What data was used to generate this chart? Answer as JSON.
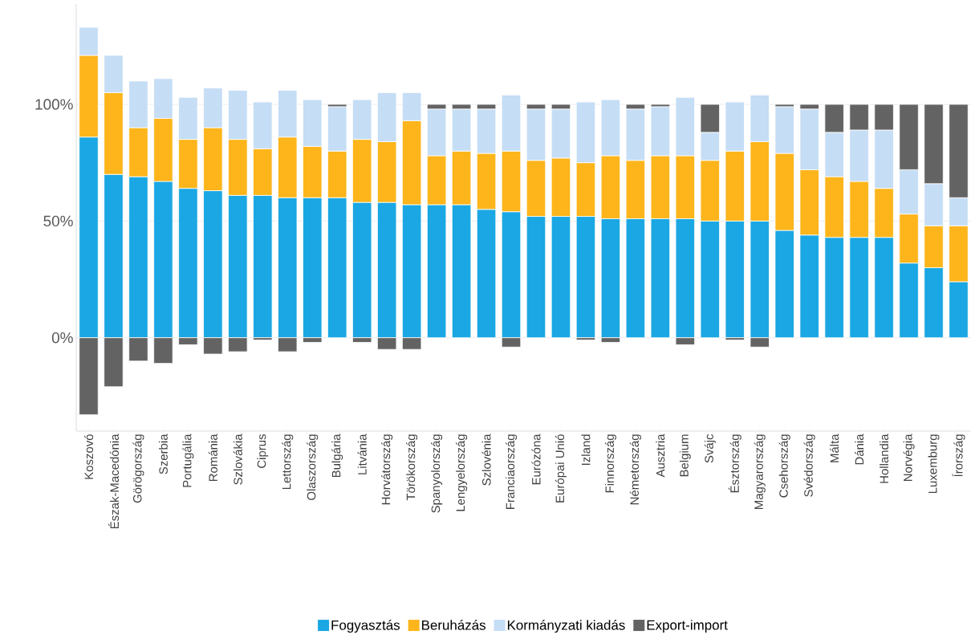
{
  "chart_data": {
    "type": "bar",
    "stacked": true,
    "categories": [
      "Koszovó",
      "Észak-Macedónia",
      "Görögország",
      "Szerbia",
      "Portugália",
      "Románia",
      "Szlovákia",
      "Ciprus",
      "Lettország",
      "Olaszország",
      "Bulgária",
      "Litvánia",
      "Horvátország",
      "Törökország",
      "Spanyolország",
      "Lengyelország",
      "Szlovénia",
      "Franciaország",
      "Eurózóna",
      "Európai Unió",
      "Izland",
      "Finnország",
      "Németország",
      "Ausztria",
      "Belgium",
      "Svájc",
      "Észtország",
      "Magyarország",
      "Csehország",
      "Svédország",
      "Málta",
      "Dánia",
      "Hollandia",
      "Norvégia",
      "Luxemburg",
      "Írország"
    ],
    "series": [
      {
        "name": "Fogyasztás",
        "color": "#1aa7e3",
        "values": [
          86,
          70,
          69,
          67,
          64,
          63,
          61,
          61,
          60,
          60,
          60,
          58,
          58,
          57,
          57,
          57,
          55,
          54,
          52,
          52,
          52,
          51,
          51,
          51,
          51,
          50,
          50,
          50,
          46,
          44,
          43,
          43,
          43,
          32,
          30,
          24
        ]
      },
      {
        "name": "Beruházás",
        "color": "#fdb51b",
        "values": [
          35,
          35,
          21,
          27,
          21,
          27,
          24,
          20,
          26,
          22,
          20,
          27,
          26,
          36,
          21,
          23,
          24,
          26,
          24,
          25,
          23,
          27,
          25,
          27,
          27,
          26,
          30,
          34,
          33,
          28,
          26,
          24,
          21,
          21,
          18,
          24
        ]
      },
      {
        "name": "Kormányzati kiadás",
        "color": "#c5ddf5",
        "values": [
          12,
          16,
          20,
          17,
          18,
          17,
          21,
          20,
          20,
          20,
          19,
          17,
          21,
          12,
          20,
          18,
          19,
          24,
          22,
          21,
          26,
          24,
          22,
          21,
          25,
          12,
          21,
          20,
          20,
          26,
          19,
          22,
          25,
          19,
          18,
          12
        ]
      },
      {
        "name": "Export-import",
        "color": "#636363",
        "values": [
          -33,
          -21,
          -10,
          -11,
          -3,
          -7,
          -6,
          -1,
          -6,
          -2,
          1,
          -2,
          -5,
          -5,
          2,
          2,
          2,
          -4,
          2,
          2,
          -1,
          -2,
          2,
          1,
          -3,
          12,
          -1,
          -4,
          1,
          2,
          12,
          11,
          11,
          28,
          34,
          40
        ]
      }
    ],
    "ylim": [
      -40,
      143
    ],
    "yticks": [
      {
        "value": 0,
        "label": "0%"
      },
      {
        "value": 50,
        "label": "50%"
      },
      {
        "value": 100,
        "label": "100%"
      }
    ],
    "grid": "y",
    "legend": "bottom"
  }
}
